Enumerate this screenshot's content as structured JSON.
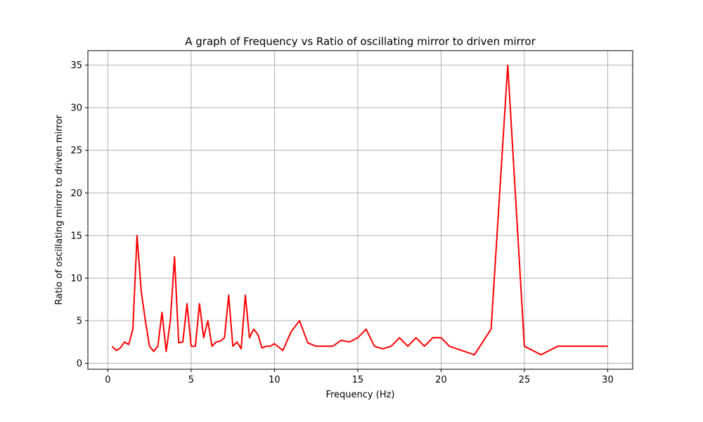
{
  "chart_data": {
    "type": "line",
    "title": "A graph of Frequency vs Ratio of oscillating mirror to driven mirror",
    "xlabel": "Frequency (Hz)",
    "ylabel": "Ratio of oscillating mirror to driven mirror",
    "xlim": [
      -1.2,
      31.5
    ],
    "ylim": [
      -0.7,
      36.7
    ],
    "xticks": [
      0,
      5,
      10,
      15,
      20,
      25,
      30
    ],
    "yticks": [
      0,
      5,
      10,
      15,
      20,
      25,
      30,
      35
    ],
    "grid": true,
    "line_color": "#ff0000",
    "series": [
      {
        "x": [
          0.25,
          0.5,
          0.75,
          1.0,
          1.25,
          1.5,
          1.75,
          2.0,
          2.25,
          2.5,
          2.75,
          3.0,
          3.25,
          3.5,
          3.75,
          4.0,
          4.25,
          4.5,
          4.75,
          5.0,
          5.25,
          5.5,
          5.75,
          6.0,
          6.25,
          6.5,
          6.75,
          7.0,
          7.25,
          7.5,
          7.75,
          8.0,
          8.25,
          8.5,
          8.75,
          9.0,
          9.25,
          9.5,
          9.75,
          10.0,
          10.5,
          11.0,
          11.5,
          12.0,
          12.5,
          13.0,
          13.5,
          14.0,
          14.5,
          15.0,
          15.5,
          16.0,
          16.5,
          17.0,
          17.5,
          18.0,
          18.5,
          19.0,
          19.5,
          20.0,
          20.5,
          22.0,
          23.0,
          24.0,
          25.0,
          26.0,
          27.0,
          28.0,
          29.0,
          30.0
        ],
        "values": [
          2.0,
          1.5,
          1.8,
          2.5,
          2.2,
          4.0,
          15.0,
          8.5,
          5.0,
          2.0,
          1.4,
          2.0,
          6.0,
          1.4,
          5.0,
          12.5,
          2.4,
          2.5,
          7.0,
          2.0,
          2.0,
          7.0,
          3.0,
          5.0,
          2.0,
          2.5,
          2.6,
          3.0,
          8.0,
          2.0,
          2.5,
          1.7,
          8.0,
          3.0,
          4.0,
          3.4,
          1.8,
          2.0,
          2.0,
          2.3,
          1.5,
          3.7,
          5.0,
          2.4,
          2.0,
          2.0,
          2.0,
          2.7,
          2.5,
          3.0,
          4.0,
          2.0,
          1.7,
          2.0,
          3.0,
          2.0,
          3.0,
          2.0,
          3.0,
          3.0,
          2.0,
          1.0,
          4.0,
          35.0,
          2.0,
          1.0,
          2.0,
          2.0,
          2.0,
          2.0
        ]
      }
    ]
  }
}
